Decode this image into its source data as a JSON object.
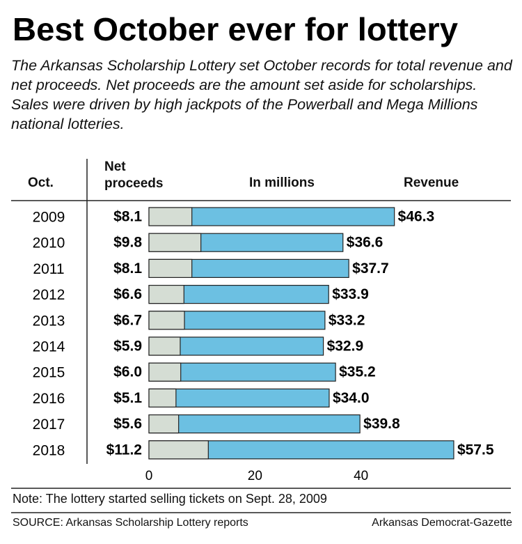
{
  "chart_data": {
    "type": "bar",
    "orientation": "horizontal",
    "title": "Best October ever for lottery",
    "subtitle": "The Arkansas Scholarship Lottery set October records for total revenue and net proceeds. Net proceeds are the amount set aside for scholarships. Sales were driven by high jackpots of the Powerball and Mega Millions national lotteries.",
    "category_header": "Oct.",
    "axis_label": "In millions",
    "categories": [
      "2009",
      "2010",
      "2011",
      "2012",
      "2013",
      "2014",
      "2015",
      "2016",
      "2017",
      "2018"
    ],
    "series": [
      {
        "name": "Revenue",
        "color": "#6cc0e2",
        "values": [
          46.3,
          36.6,
          37.7,
          33.9,
          33.2,
          32.9,
          35.2,
          34.0,
          39.8,
          57.5
        ],
        "value_labels": [
          "$46.3",
          "$36.6",
          "$37.7",
          "$33.9",
          "$33.2",
          "$32.9",
          "$35.2",
          "$34.0",
          "$39.8",
          "$57.5"
        ]
      },
      {
        "name": "Net proceeds",
        "color": "#d5ddd4",
        "values": [
          8.1,
          9.8,
          8.1,
          6.6,
          6.7,
          5.9,
          6.0,
          5.1,
          5.6,
          11.2
        ],
        "value_labels": [
          "$8.1",
          "$9.8",
          "$8.1",
          "$6.6",
          "$6.7",
          "$5.9",
          "$6.0",
          "$5.1",
          "$5.6",
          "$11.2"
        ]
      }
    ],
    "xlim": [
      0,
      60
    ],
    "xticks": [
      0,
      20,
      40
    ],
    "note": "Note: The lottery started selling tickets on Sept. 28, 2009",
    "source": "SOURCE: Arkansas Scholarship Lottery reports",
    "credit": "Arkansas Democrat-Gazette"
  }
}
